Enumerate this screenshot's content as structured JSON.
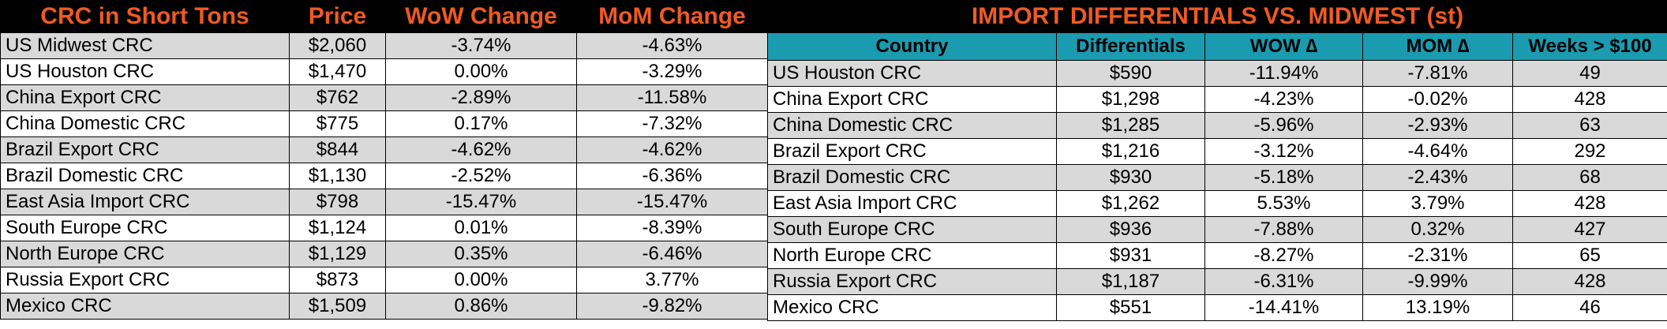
{
  "left_table": {
    "headers": [
      "CRC in Short Tons",
      "Price",
      "WoW Change",
      "MoM Change"
    ],
    "rows": [
      {
        "name": "US Midwest CRC",
        "price": "$2,060",
        "wow": "-3.74%",
        "mom": "-4.63%"
      },
      {
        "name": "US Houston CRC",
        "price": "$1,470",
        "wow": "0.00%",
        "mom": "-3.29%"
      },
      {
        "name": "China Export CRC",
        "price": "$762",
        "wow": "-2.89%",
        "mom": "-11.58%"
      },
      {
        "name": "China Domestic CRC",
        "price": "$775",
        "wow": "0.17%",
        "mom": "-7.32%"
      },
      {
        "name": "Brazil Export CRC",
        "price": "$844",
        "wow": "-4.62%",
        "mom": "-4.62%"
      },
      {
        "name": "Brazil Domestic CRC",
        "price": "$1,130",
        "wow": "-2.52%",
        "mom": "-6.36%"
      },
      {
        "name": "East Asia Import CRC",
        "price": "$798",
        "wow": "-15.47%",
        "mom": "-15.47%"
      },
      {
        "name": "South Europe CRC",
        "price": "$1,124",
        "wow": "0.01%",
        "mom": "-8.39%"
      },
      {
        "name": "North Europe CRC",
        "price": "$1,129",
        "wow": "0.35%",
        "mom": "-6.46%"
      },
      {
        "name": "Russia Export CRC",
        "price": "$873",
        "wow": "0.00%",
        "mom": "3.77%"
      },
      {
        "name": "Mexico CRC",
        "price": "$1,509",
        "wow": "0.86%",
        "mom": "-9.82%"
      }
    ]
  },
  "right_table": {
    "title": "IMPORT DIFFERENTIALS VS. MIDWEST (st)",
    "headers": [
      "Country",
      "Differentials",
      "WOW ∆",
      "MOM ∆",
      "Weeks > $100"
    ],
    "rows": [
      {
        "name": "US Houston CRC",
        "diff": "$590",
        "wow": "-11.94%",
        "mom": "-7.81%",
        "weeks": "49"
      },
      {
        "name": "China Export CRC",
        "diff": "$1,298",
        "wow": "-4.23%",
        "mom": "-0.02%",
        "weeks": "428"
      },
      {
        "name": "China Domestic CRC",
        "diff": "$1,285",
        "wow": "-5.96%",
        "mom": "-2.93%",
        "weeks": "63"
      },
      {
        "name": "Brazil Export CRC",
        "diff": "$1,216",
        "wow": "-3.12%",
        "mom": "-4.64%",
        "weeks": "292"
      },
      {
        "name": "Brazil Domestic CRC",
        "diff": "$930",
        "wow": "-5.18%",
        "mom": "-2.43%",
        "weeks": "68"
      },
      {
        "name": "East Asia Import CRC",
        "diff": "$1,262",
        "wow": "5.53%",
        "mom": "3.79%",
        "weeks": "428"
      },
      {
        "name": "South Europe CRC",
        "diff": "$936",
        "wow": "-7.88%",
        "mom": "0.32%",
        "weeks": "427"
      },
      {
        "name": "North Europe CRC",
        "diff": "$931",
        "wow": "-8.27%",
        "mom": "-2.31%",
        "weeks": "65"
      },
      {
        "name": "Russia Export CRC",
        "diff": "$1,187",
        "wow": "-6.31%",
        "mom": "-9.99%",
        "weeks": "428"
      },
      {
        "name": "Mexico CRC",
        "diff": "$551",
        "wow": "-14.41%",
        "mom": "13.19%",
        "weeks": "46"
      }
    ]
  },
  "colors": {
    "header_bg": "#000000",
    "header_text": "#f05a22",
    "subheader_bg": "#1a9bb0",
    "row_gray": "#d9d9d9",
    "row_white": "#ffffff"
  }
}
